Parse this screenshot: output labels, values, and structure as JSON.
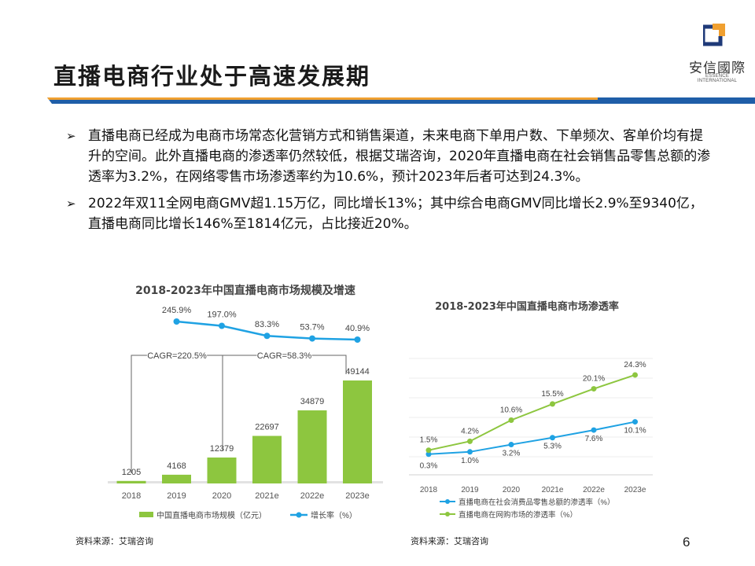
{
  "page": {
    "title": "直播电商行业处于高速发展期",
    "page_number": "6"
  },
  "logo": {
    "cn": "安信國際",
    "en": "ESSENCE INTERNATIONAL"
  },
  "colors": {
    "bar_green": "#8dc63f",
    "line_blue": "#1fa2e3",
    "header_blue": "#1f5ea8",
    "header_orange": "#f0a030",
    "logo_orange": "#f0a030",
    "logo_navy": "#1f3a78"
  },
  "bullets": [
    "直播电商已经成为电商市场常态化营销方式和销售渠道，未来电商下单用户数、下单频次、客单价均有提升的空间。此外直播电商的渗透率仍然较低，根据艾瑞咨询，2020年直播电商在社会销售品零售总额的渗透率为3.2%，在网络零售市场渗透率约为10.6%，预计2023年后者可达到24.3%。",
    "2022年双11全网电商GMV超1.15万亿，同比增长13%；其中综合电商GMV同比增长2.9%至9340亿，直播电商同比增长146%至1814亿元，占比接近20%。"
  ],
  "sources": {
    "left": "资料来源：艾瑞咨询",
    "right": "资料来源：艾瑞咨询"
  },
  "chart_data": [
    {
      "type": "bar",
      "title": "2018-2023年中国直播电商市场规模及增速",
      "categories": [
        "2018",
        "2019",
        "2020",
        "2021e",
        "2022e",
        "2023e"
      ],
      "series": [
        {
          "name": "中国直播电商市场规模（亿元）",
          "type": "bar",
          "values": [
            1205,
            4168,
            12379,
            22697,
            34879,
            49144
          ],
          "labels": [
            "1205",
            "4168",
            "12379",
            "22697",
            "34879",
            "49144"
          ]
        },
        {
          "name": "增长率（%）",
          "type": "line",
          "values": [
            null,
            245.9,
            197.0,
            83.3,
            53.7,
            40.9
          ],
          "labels": [
            "",
            "245.9%",
            "197.0%",
            "83.3%",
            "53.7%",
            "40.9%"
          ]
        }
      ],
      "annotations": [
        "CAGR=220.5%",
        "CAGR=58.3%"
      ],
      "legend_position": "bottom"
    },
    {
      "type": "line",
      "title": "2018-2023年中国直播电商市场渗透率",
      "categories": [
        "2018",
        "2019",
        "2020",
        "2021e",
        "2022e",
        "2023e"
      ],
      "series": [
        {
          "name": "直播电商在社会消费品零售总额的渗透率（%）",
          "values": [
            0.3,
            1.0,
            3.2,
            5.3,
            7.6,
            10.1
          ],
          "labels": [
            "0.3%",
            "1.0%",
            "3.2%",
            "5.3%",
            "7.6%",
            "10.1%"
          ]
        },
        {
          "name": "直播电商在网购市场的渗透率（%）",
          "values": [
            1.5,
            4.2,
            10.6,
            15.5,
            20.1,
            24.3
          ],
          "labels": [
            "1.5%",
            "4.2%",
            "10.6%",
            "15.5%",
            "20.1%",
            "24.3%"
          ]
        }
      ],
      "grid": true,
      "legend_position": "bottom"
    }
  ]
}
